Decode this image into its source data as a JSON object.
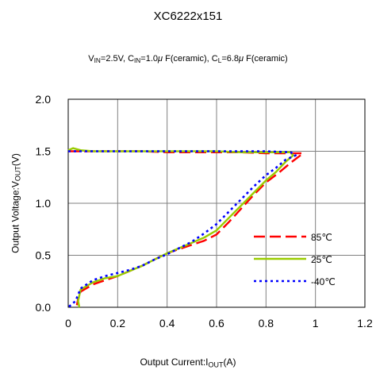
{
  "chart_data": {
    "type": "line",
    "title": "XC6222x151",
    "conditions": {
      "vin": "2.5V",
      "cin": "1.0",
      "cl": "6.8",
      "cap_type": "F(ceramic)"
    },
    "xlabel": {
      "text": "Output Current:I",
      "sub": "OUT",
      "unit": "(A)"
    },
    "ylabel": {
      "text": "Output Voltage:V",
      "sub": "OUT",
      "unit": "(V)"
    },
    "xlim": [
      0,
      1.2
    ],
    "ylim": [
      0,
      2.0
    ],
    "xticks": [
      "0",
      "0.2",
      "0.4",
      "0.6",
      "0.8",
      "1",
      "1.2"
    ],
    "yticks": [
      "0.0",
      "0.5",
      "1.0",
      "1.5",
      "2.0"
    ],
    "grid": true,
    "legend_position": "lower-right",
    "series": [
      {
        "name": "85℃",
        "color": "#ff0000",
        "style": "dashed",
        "points": [
          [
            0.0,
            1.5
          ],
          [
            0.1,
            1.5
          ],
          [
            0.2,
            1.5
          ],
          [
            0.3,
            1.5
          ],
          [
            0.4,
            1.49
          ],
          [
            0.5,
            1.49
          ],
          [
            0.6,
            1.49
          ],
          [
            0.7,
            1.49
          ],
          [
            0.8,
            1.48
          ],
          [
            0.88,
            1.48
          ],
          [
            0.95,
            1.48
          ],
          [
            0.9,
            1.39
          ],
          [
            0.85,
            1.29
          ],
          [
            0.8,
            1.2
          ],
          [
            0.75,
            1.08
          ],
          [
            0.7,
            0.95
          ],
          [
            0.65,
            0.82
          ],
          [
            0.6,
            0.7
          ],
          [
            0.55,
            0.64
          ],
          [
            0.5,
            0.6
          ],
          [
            0.45,
            0.56
          ],
          [
            0.4,
            0.52
          ],
          [
            0.35,
            0.46
          ],
          [
            0.3,
            0.4
          ],
          [
            0.25,
            0.35
          ],
          [
            0.2,
            0.3
          ],
          [
            0.15,
            0.26
          ],
          [
            0.1,
            0.22
          ],
          [
            0.05,
            0.15
          ],
          [
            0.04,
            0.08
          ],
          [
            0.035,
            0.02
          ]
        ]
      },
      {
        "name": "25℃",
        "color": "#99cc00",
        "style": "solid",
        "points": [
          [
            0.0,
            1.51
          ],
          [
            0.02,
            1.53
          ],
          [
            0.05,
            1.51
          ],
          [
            0.1,
            1.5
          ],
          [
            0.2,
            1.5
          ],
          [
            0.3,
            1.5
          ],
          [
            0.4,
            1.5
          ],
          [
            0.5,
            1.5
          ],
          [
            0.6,
            1.5
          ],
          [
            0.7,
            1.49
          ],
          [
            0.8,
            1.49
          ],
          [
            0.9,
            1.49
          ],
          [
            0.91,
            1.46
          ],
          [
            0.88,
            1.4
          ],
          [
            0.84,
            1.3
          ],
          [
            0.8,
            1.22
          ],
          [
            0.75,
            1.1
          ],
          [
            0.7,
            0.98
          ],
          [
            0.65,
            0.86
          ],
          [
            0.6,
            0.74
          ],
          [
            0.55,
            0.67
          ],
          [
            0.5,
            0.62
          ],
          [
            0.45,
            0.57
          ],
          [
            0.4,
            0.52
          ],
          [
            0.35,
            0.46
          ],
          [
            0.3,
            0.4
          ],
          [
            0.25,
            0.35
          ],
          [
            0.2,
            0.3
          ],
          [
            0.15,
            0.28
          ],
          [
            0.1,
            0.24
          ],
          [
            0.05,
            0.17
          ],
          [
            0.04,
            0.06
          ],
          [
            0.045,
            0.0
          ]
        ]
      },
      {
        "name": "-40℃",
        "color": "#0000ff",
        "style": "dotted",
        "points": [
          [
            0.0,
            1.5
          ],
          [
            0.05,
            1.5
          ],
          [
            0.1,
            1.5
          ],
          [
            0.2,
            1.5
          ],
          [
            0.3,
            1.5
          ],
          [
            0.4,
            1.5
          ],
          [
            0.5,
            1.5
          ],
          [
            0.6,
            1.5
          ],
          [
            0.7,
            1.5
          ],
          [
            0.8,
            1.5
          ],
          [
            0.9,
            1.49
          ],
          [
            0.92,
            1.46
          ],
          [
            0.88,
            1.42
          ],
          [
            0.84,
            1.34
          ],
          [
            0.8,
            1.27
          ],
          [
            0.75,
            1.16
          ],
          [
            0.7,
            1.04
          ],
          [
            0.65,
            0.92
          ],
          [
            0.6,
            0.8
          ],
          [
            0.55,
            0.71
          ],
          [
            0.5,
            0.63
          ],
          [
            0.45,
            0.57
          ],
          [
            0.4,
            0.51
          ],
          [
            0.35,
            0.46
          ],
          [
            0.3,
            0.4
          ],
          [
            0.25,
            0.36
          ],
          [
            0.2,
            0.33
          ],
          [
            0.15,
            0.3
          ],
          [
            0.1,
            0.26
          ],
          [
            0.05,
            0.18
          ],
          [
            0.03,
            0.06
          ],
          [
            0.0,
            0.0
          ]
        ]
      }
    ]
  }
}
